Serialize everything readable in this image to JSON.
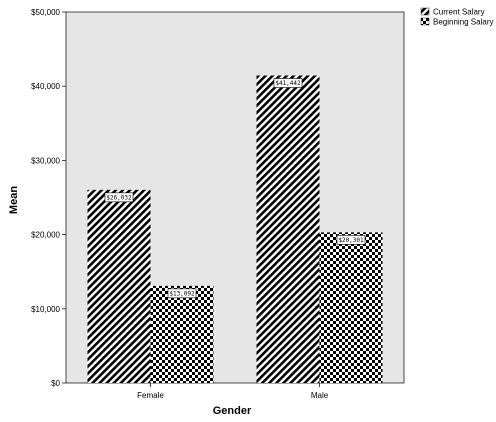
{
  "chart_data": {
    "type": "bar",
    "title": "",
    "xlabel": "Gender",
    "ylabel": "Mean",
    "categories": [
      "Female",
      "Male"
    ],
    "series": [
      {
        "name": "Current Salary",
        "values": [
          26032,
          41442
        ],
        "labels": [
          "$26,032",
          "$41,442"
        ],
        "pattern": "diagonal-hatch"
      },
      {
        "name": "Beginning Salary",
        "values": [
          13092,
          20301
        ],
        "labels": [
          "$13,092",
          "$20,301"
        ],
        "pattern": "checker"
      }
    ],
    "ylim": [
      0,
      50000
    ],
    "yticks": [
      0,
      10000,
      20000,
      30000,
      40000,
      50000
    ],
    "ytick_labels": [
      "$0",
      "$10,000",
      "$20,000",
      "$30,000",
      "$40,000",
      "$50,000"
    ],
    "grid": false,
    "plot_background": "#e6e6e6",
    "legend_position": "top-right"
  }
}
